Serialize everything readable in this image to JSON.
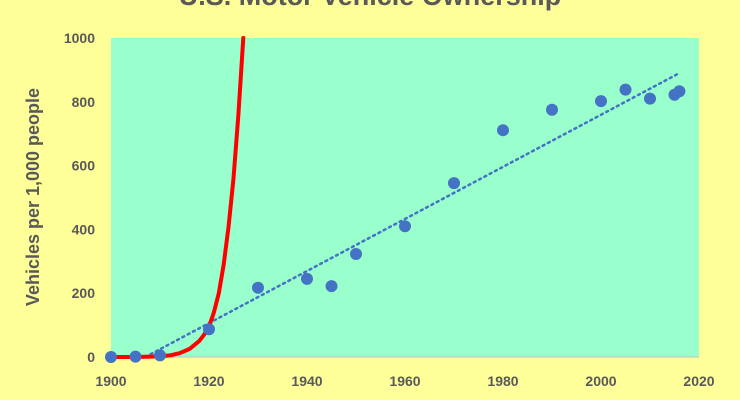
{
  "chart_data": {
    "type": "scatter",
    "title": "U.S. Motor Vehicle Ownership",
    "xlabel": "",
    "ylabel": "Vehicles per 1,000 people",
    "xlim": [
      1900,
      2020
    ],
    "ylim": [
      0,
      1000
    ],
    "x_ticks": [
      1900,
      1920,
      1940,
      1960,
      1980,
      2000,
      2020
    ],
    "y_ticks": [
      0,
      200,
      400,
      600,
      800,
      1000
    ],
    "grid": false,
    "legend": "none",
    "colors": {
      "page_background": "#FFFF99",
      "plot_background": "#99FFCC",
      "points": "#4472C4",
      "exponential_curve": "#FF0000",
      "linear_trend": "#4472C4",
      "text": "#595959"
    },
    "points": [
      {
        "x": 1900,
        "y": 0
      },
      {
        "x": 1905,
        "y": 1
      },
      {
        "x": 1910,
        "y": 5
      },
      {
        "x": 1920,
        "y": 87
      },
      {
        "x": 1930,
        "y": 217
      },
      {
        "x": 1940,
        "y": 245
      },
      {
        "x": 1945,
        "y": 222
      },
      {
        "x": 1950,
        "y": 323
      },
      {
        "x": 1960,
        "y": 410
      },
      {
        "x": 1970,
        "y": 545
      },
      {
        "x": 1980,
        "y": 711
      },
      {
        "x": 1990,
        "y": 775
      },
      {
        "x": 2000,
        "y": 802
      },
      {
        "x": 2005,
        "y": 838
      },
      {
        "x": 2010,
        "y": 810
      },
      {
        "x": 2015,
        "y": 822
      },
      {
        "x": 2016,
        "y": 833
      }
    ],
    "exponential_curve": {
      "style": "solid",
      "samples": [
        {
          "x": 1900,
          "y": 0
        },
        {
          "x": 1905,
          "y": 0
        },
        {
          "x": 1908,
          "y": 1
        },
        {
          "x": 1910,
          "y": 2
        },
        {
          "x": 1912,
          "y": 5
        },
        {
          "x": 1914,
          "y": 12
        },
        {
          "x": 1916,
          "y": 25
        },
        {
          "x": 1918,
          "y": 50
        },
        {
          "x": 1919,
          "y": 70
        },
        {
          "x": 1920,
          "y": 95
        },
        {
          "x": 1921,
          "y": 140
        },
        {
          "x": 1922,
          "y": 200
        },
        {
          "x": 1923,
          "y": 290
        },
        {
          "x": 1924,
          "y": 410
        },
        {
          "x": 1925,
          "y": 560
        },
        {
          "x": 1926,
          "y": 760
        },
        {
          "x": 1927,
          "y": 1000
        }
      ]
    },
    "linear_trend": {
      "style": "dotted",
      "start": {
        "x": 1907,
        "y": 0
      },
      "end": {
        "x": 2016,
        "y": 890
      }
    }
  }
}
